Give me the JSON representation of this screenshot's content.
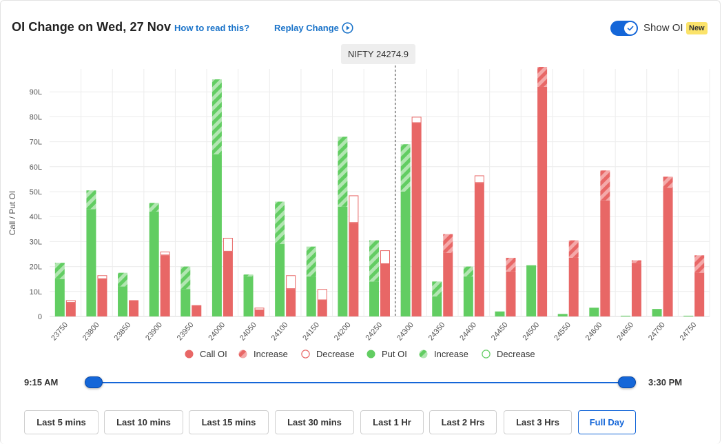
{
  "header": {
    "title": "OI Change on Wed, 27 Nov",
    "how_to_read": "How to read this?",
    "replay": "Replay Change",
    "show_oi": "Show OI",
    "new_badge": "New",
    "show_oi_enabled": true
  },
  "spot_label": "NIFTY 24274.9",
  "legend": {
    "call_oi": "Call OI",
    "call_increase": "Increase",
    "call_decrease": "Decrease",
    "put_oi": "Put OI",
    "put_increase": "Increase",
    "put_decrease": "Decrease"
  },
  "time_range": {
    "start": "9:15 AM",
    "end": "3:30 PM"
  },
  "time_buttons": [
    {
      "label": "Last 5 mins",
      "active": false
    },
    {
      "label": "Last 10 mins",
      "active": false
    },
    {
      "label": "Last 15 mins",
      "active": false
    },
    {
      "label": "Last 30 mins",
      "active": false
    },
    {
      "label": "Last 1 Hr",
      "active": false
    },
    {
      "label": "Last 2 Hrs",
      "active": false
    },
    {
      "label": "Last 3 Hrs",
      "active": false
    },
    {
      "label": "Full Day",
      "active": true
    }
  ],
  "colors": {
    "call": "#e86766",
    "call_light": "#f4a9a9",
    "put": "#62cd62",
    "put_light": "#b2e6b2",
    "accent": "#1466d8",
    "link": "#1a73c9",
    "new_badge": "#fbe36a",
    "grid": "#ececec"
  },
  "chart_data": {
    "type": "bar",
    "ylabel": "Call / Put OI",
    "xlabel": "",
    "unit": "L",
    "ylim": [
      0,
      100
    ],
    "yticks": [
      0,
      10,
      20,
      30,
      40,
      50,
      60,
      70,
      80,
      90
    ],
    "ytick_labels": [
      "0",
      "10L",
      "20L",
      "30L",
      "40L",
      "50L",
      "60L",
      "70L",
      "80L",
      "90L"
    ],
    "spot_strike": 24274.9,
    "grid": true,
    "legend_position": "bottom",
    "categories": [
      "23750",
      "23800",
      "23850",
      "23900",
      "23950",
      "24000",
      "24050",
      "24100",
      "24150",
      "24200",
      "24250",
      "24300",
      "24350",
      "24400",
      "24450",
      "24500",
      "24550",
      "24600",
      "24650",
      "24700",
      "24750"
    ],
    "series": [
      {
        "name": "Put OI",
        "side": "put",
        "base": [
          15,
          43,
          12,
          42,
          11,
          65,
          16,
          29,
          16,
          44,
          14,
          50,
          8,
          16,
          2,
          20.5,
          1,
          3.5,
          0.3,
          3,
          0.3
        ],
        "change": [
          6.5,
          7.5,
          5.5,
          3.5,
          9,
          30,
          0.8,
          17,
          12,
          28,
          16.5,
          19,
          6,
          4,
          0,
          0,
          0,
          0,
          0,
          0,
          0
        ]
      },
      {
        "name": "Call OI",
        "side": "call",
        "base": [
          5.5,
          15,
          6.5,
          24.5,
          4.5,
          26,
          2.5,
          11,
          6.5,
          37.5,
          21,
          77.5,
          25.5,
          53.5,
          18,
          92,
          23.5,
          46.5,
          21.5,
          51.5,
          17.5
        ],
        "change": [
          1,
          1.5,
          0,
          1.5,
          0,
          5.5,
          1,
          5.5,
          4.5,
          11,
          5.5,
          2.5,
          7.5,
          3,
          5.5,
          8,
          7,
          12,
          1,
          4.5,
          7
        ]
      }
    ],
    "change_direction_call": [
      "decrease",
      "decrease",
      "none",
      "decrease",
      "none",
      "decrease",
      "decrease",
      "decrease",
      "decrease",
      "decrease",
      "decrease",
      "decrease",
      "increase",
      "decrease",
      "increase",
      "increase",
      "increase",
      "increase",
      "increase",
      "increase",
      "increase"
    ],
    "change_direction_put": [
      "increase",
      "increase",
      "increase",
      "increase",
      "increase",
      "increase",
      "increase",
      "increase",
      "increase",
      "increase",
      "increase",
      "increase",
      "increase",
      "increase",
      "none",
      "none",
      "none",
      "none",
      "none",
      "none",
      "none"
    ]
  }
}
